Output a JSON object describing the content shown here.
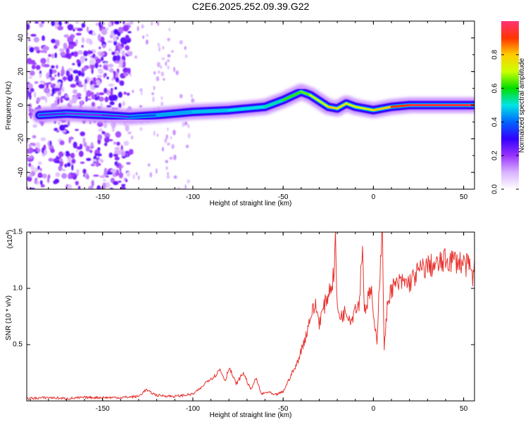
{
  "title": "C2E6.2025.252.09.39.G22",
  "chart_data": [
    {
      "type": "heatmap",
      "xlabel": "Height of straight line (km)",
      "ylabel": "Frequency (Hz)",
      "xlim": [
        -192,
        56
      ],
      "ylim": [
        -50,
        50
      ],
      "x_ticks": [
        -150,
        -100,
        -50,
        0,
        50
      ],
      "x_tick_labels": [
        "-150",
        "-100",
        "-50",
        "0",
        "50"
      ],
      "y_ticks": [
        -40,
        -20,
        0,
        20,
        40
      ],
      "y_tick_labels": [
        "-40",
        "-20",
        "0",
        "20",
        "40"
      ],
      "colorbar": {
        "label": "Normalized spectral amplitude",
        "range": [
          0,
          1
        ],
        "ticks": [
          0.0,
          0.2,
          0.4,
          0.6,
          0.8
        ],
        "tick_labels": [
          "0.0",
          "0.2",
          "0.4",
          "0.6",
          "0.8"
        ],
        "colors": [
          "#ffffff",
          "#d9b3ff",
          "#9933ff",
          "#3300ff",
          "#0066ff",
          "#00e5e5",
          "#00dd00",
          "#ccff00",
          "#ffcc00",
          "#ff3300",
          "#ff3377"
        ]
      },
      "ridge": {
        "x": [
          -185,
          -170,
          -150,
          -135,
          -120,
          -100,
          -80,
          -60,
          -50,
          -40,
          -35,
          -25,
          -20,
          -15,
          -10,
          -5,
          0,
          10,
          20,
          30,
          40,
          56
        ],
        "freq": [
          -6,
          -5,
          -6,
          -7,
          -6,
          -4,
          -3,
          -1,
          3,
          8,
          6,
          -1,
          -2,
          1,
          -1,
          -2,
          -3,
          -1,
          0,
          0,
          0,
          0
        ],
        "amplitude": [
          0.25,
          0.25,
          0.2,
          0.3,
          0.45,
          0.45,
          0.5,
          0.5,
          0.55,
          0.7,
          0.6,
          0.8,
          0.8,
          0.7,
          0.75,
          0.7,
          0.75,
          0.85,
          0.95,
          0.95,
          0.95,
          0.95
        ]
      }
    },
    {
      "type": "line",
      "xlabel": "Height of straight line (km)",
      "ylabel": "SNR (10 * v/v)",
      "y_multiplier": "(x10",
      "y_multiplier_exp": "4",
      "y_multiplier_close": ")",
      "xlim": [
        -192,
        56
      ],
      "ylim": [
        0,
        1.5
      ],
      "x_ticks": [
        -150,
        -100,
        -50,
        0,
        50
      ],
      "x_tick_labels": [
        "-150",
        "-100",
        "-50",
        "0",
        "50"
      ],
      "y_ticks": [
        0.5,
        1.0,
        1.5
      ],
      "y_tick_labels": [
        "0.5",
        "1.0",
        "1.5"
      ],
      "color": "#e8322e",
      "series": [
        {
          "name": "SNR",
          "x": [
            -192,
            -180,
            -170,
            -160,
            -150,
            -140,
            -130,
            -126,
            -124,
            -120,
            -110,
            -100,
            -95,
            -92,
            -88,
            -85,
            -82,
            -80,
            -76,
            -72,
            -68,
            -65,
            -62,
            -58,
            -55,
            -50,
            -45,
            -43,
            -40,
            -37,
            -35,
            -32,
            -30,
            -28,
            -26,
            -24,
            -22,
            -21,
            -20,
            -18,
            -15,
            -12,
            -10,
            -8,
            -6,
            -5,
            -3,
            -1,
            0,
            2,
            4,
            5,
            6,
            8,
            10,
            15,
            20,
            25,
            30,
            35,
            40,
            45,
            50,
            54,
            55,
            56
          ],
          "y": [
            0.02,
            0.03,
            0.02,
            0.03,
            0.03,
            0.03,
            0.04,
            0.1,
            0.08,
            0.05,
            0.04,
            0.06,
            0.12,
            0.18,
            0.22,
            0.28,
            0.18,
            0.3,
            0.15,
            0.25,
            0.1,
            0.2,
            0.06,
            0.08,
            0.05,
            0.08,
            0.25,
            0.3,
            0.45,
            0.6,
            0.75,
            0.85,
            0.7,
            0.8,
            0.9,
            1.0,
            1.1,
            1.45,
            0.8,
            0.75,
            0.8,
            0.72,
            0.85,
            0.85,
            1.4,
            0.8,
            0.9,
            1.0,
            0.7,
            0.55,
            1.3,
            1.5,
            0.45,
            0.9,
            1.0,
            1.05,
            1.05,
            1.15,
            1.2,
            1.2,
            1.25,
            1.25,
            1.22,
            1.18,
            1.05,
            1.25
          ]
        }
      ]
    }
  ]
}
